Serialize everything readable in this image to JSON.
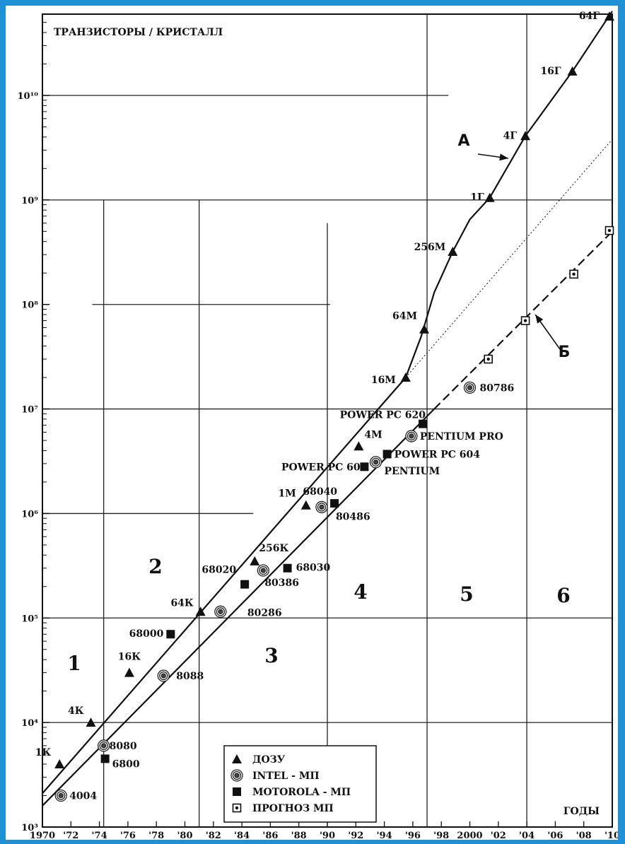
{
  "chart_data": {
    "type": "scatter",
    "title": "ТРАНЗИСТОРЫ / КРИСТАЛЛ",
    "xlabel": "ГОДЫ",
    "ylabel": "ТРАНЗИСТОРЫ / КРИСТАЛЛ",
    "y_scale": "log",
    "xlim": [
      1970,
      2010
    ],
    "ylim": [
      1000,
      60000000000
    ],
    "x_ticks": [
      "1970",
      "'72",
      "'74",
      "'76",
      "'78",
      "'80",
      "'82",
      "'84",
      "'86",
      "'88",
      "'90",
      "'92",
      "'94",
      "'96",
      "'98",
      "2000",
      "'02",
      "'04",
      "'06",
      "'08",
      "'10"
    ],
    "y_ticks": [
      {
        "label": "10³",
        "value": 1000
      },
      {
        "label": "10⁴",
        "value": 10000
      },
      {
        "label": "10⁵",
        "value": 100000
      },
      {
        "label": "10⁶",
        "value": 1000000
      },
      {
        "label": "10⁷",
        "value": 10000000
      },
      {
        "label": "10⁸",
        "value": 100000000
      },
      {
        "label": "10⁹",
        "value": 1000000000
      },
      {
        "label": "10¹⁰",
        "value": 10000000000
      }
    ],
    "legend": [
      {
        "label": "ДОЗУ",
        "marker": "triangle"
      },
      {
        "label": "INTEL - МП",
        "marker": "circle"
      },
      {
        "label": "MOTOROLA - МП",
        "marker": "square"
      },
      {
        "label": "ПРОГНОЗ МП",
        "marker": "dotted-square"
      }
    ],
    "legend_position": "bottom-center",
    "series": [
      {
        "name": "ДОЗУ",
        "marker": "triangle",
        "points": [
          {
            "x": 1971.2,
            "y": 4000,
            "label": "1К"
          },
          {
            "x": 1973.4,
            "y": 10000,
            "label": "4К"
          },
          {
            "x": 1976.1,
            "y": 30000,
            "label": "16К"
          },
          {
            "x": 1981.1,
            "y": 115000,
            "label": "64К"
          },
          {
            "x": 1984.9,
            "y": 350000,
            "label": "256К"
          },
          {
            "x": 1988.5,
            "y": 1200000,
            "label": "1М"
          },
          {
            "x": 1992.2,
            "y": 4400000,
            "label": "4М"
          },
          {
            "x": 1995.5,
            "y": 20000000,
            "label": "16М"
          },
          {
            "x": 1996.8,
            "y": 58000000,
            "label": "64М"
          },
          {
            "x": 1998.8,
            "y": 320000000,
            "label": "256М"
          },
          {
            "x": 2001.4,
            "y": 1050000000,
            "label": "1Г"
          },
          {
            "x": 2003.9,
            "y": 4100000000,
            "label": "4Г"
          },
          {
            "x": 2007.2,
            "y": 17000000000,
            "label": "16Г"
          },
          {
            "x": 2009.8,
            "y": 57000000000,
            "label": "64Г"
          }
        ]
      },
      {
        "name": "INTEL - МП",
        "marker": "circle",
        "points": [
          {
            "x": 1971.3,
            "y": 2000,
            "label": "4004"
          },
          {
            "x": 1974.3,
            "y": 6000,
            "label": "8080"
          },
          {
            "x": 1978.5,
            "y": 28000,
            "label": "8088"
          },
          {
            "x": 1982.5,
            "y": 115000,
            "label": "80286"
          },
          {
            "x": 1985.5,
            "y": 285000,
            "label": "80386"
          },
          {
            "x": 1989.6,
            "y": 1150000,
            "label": "80486"
          },
          {
            "x": 1993.4,
            "y": 3100000,
            "label": "PENTIUM"
          },
          {
            "x": 1995.9,
            "y": 5500000,
            "label": "PENTIUM PRO"
          },
          {
            "x": 2000.0,
            "y": 16000000,
            "label": "80786"
          }
        ]
      },
      {
        "name": "MOTOROLA - МП",
        "marker": "square",
        "points": [
          {
            "x": 1974.4,
            "y": 4500,
            "label": "6800"
          },
          {
            "x": 1979.0,
            "y": 70000,
            "label": "68000"
          },
          {
            "x": 1984.2,
            "y": 210000,
            "label": "68020"
          },
          {
            "x": 1987.2,
            "y": 300000,
            "label": "68030"
          },
          {
            "x": 1990.5,
            "y": 1250000,
            "label": "68040"
          },
          {
            "x": 1992.6,
            "y": 2800000,
            "label": "POWER PC 601"
          },
          {
            "x": 1994.2,
            "y": 3700000,
            "label": "POWER PC 604"
          },
          {
            "x": 1996.7,
            "y": 7200000,
            "label": "POWER PC 620"
          }
        ]
      },
      {
        "name": "ПРОГНОЗ МП",
        "marker": "dotted-square",
        "points": [
          {
            "x": 2001.3,
            "y": 30000000
          },
          {
            "x": 2003.9,
            "y": 70000000
          },
          {
            "x": 2007.3,
            "y": 195000000
          },
          {
            "x": 2009.8,
            "y": 510000000
          }
        ]
      }
    ],
    "trend_lines": [
      {
        "style": "solid",
        "points": [
          [
            1970,
            2100
          ],
          [
            1995.5,
            20000000
          ]
        ]
      },
      {
        "style": "solid",
        "points": [
          [
            1995.5,
            20000000
          ],
          [
            1996.6,
            50000000
          ],
          [
            1997.5,
            130000000
          ],
          [
            1998.8,
            320000000
          ],
          [
            2000,
            650000000
          ],
          [
            2001.4,
            1050000000
          ],
          [
            2003.9,
            4100000000
          ],
          [
            2007.2,
            17000000000
          ],
          [
            2010,
            64000000000
          ]
        ]
      },
      {
        "style": "solid",
        "points": [
          [
            1970,
            1600
          ],
          [
            1997.5,
            10000000
          ]
        ]
      },
      {
        "style": "dashed",
        "points": [
          [
            1997.5,
            10000000
          ],
          [
            2010,
            500000000
          ]
        ]
      },
      {
        "style": "dotted",
        "points": [
          [
            1995.5,
            20000000
          ],
          [
            2010,
            3800000000
          ]
        ]
      }
    ],
    "annotations": [
      {
        "text": "А",
        "arrow_to": {
          "x": 2002.7,
          "y": 2500000000
        }
      },
      {
        "text": "Б",
        "arrow_to": {
          "x": 2004.6,
          "y": 80000000
        }
      }
    ],
    "regions": [
      "1",
      "2",
      "3",
      "4",
      "5",
      "6"
    ]
  }
}
